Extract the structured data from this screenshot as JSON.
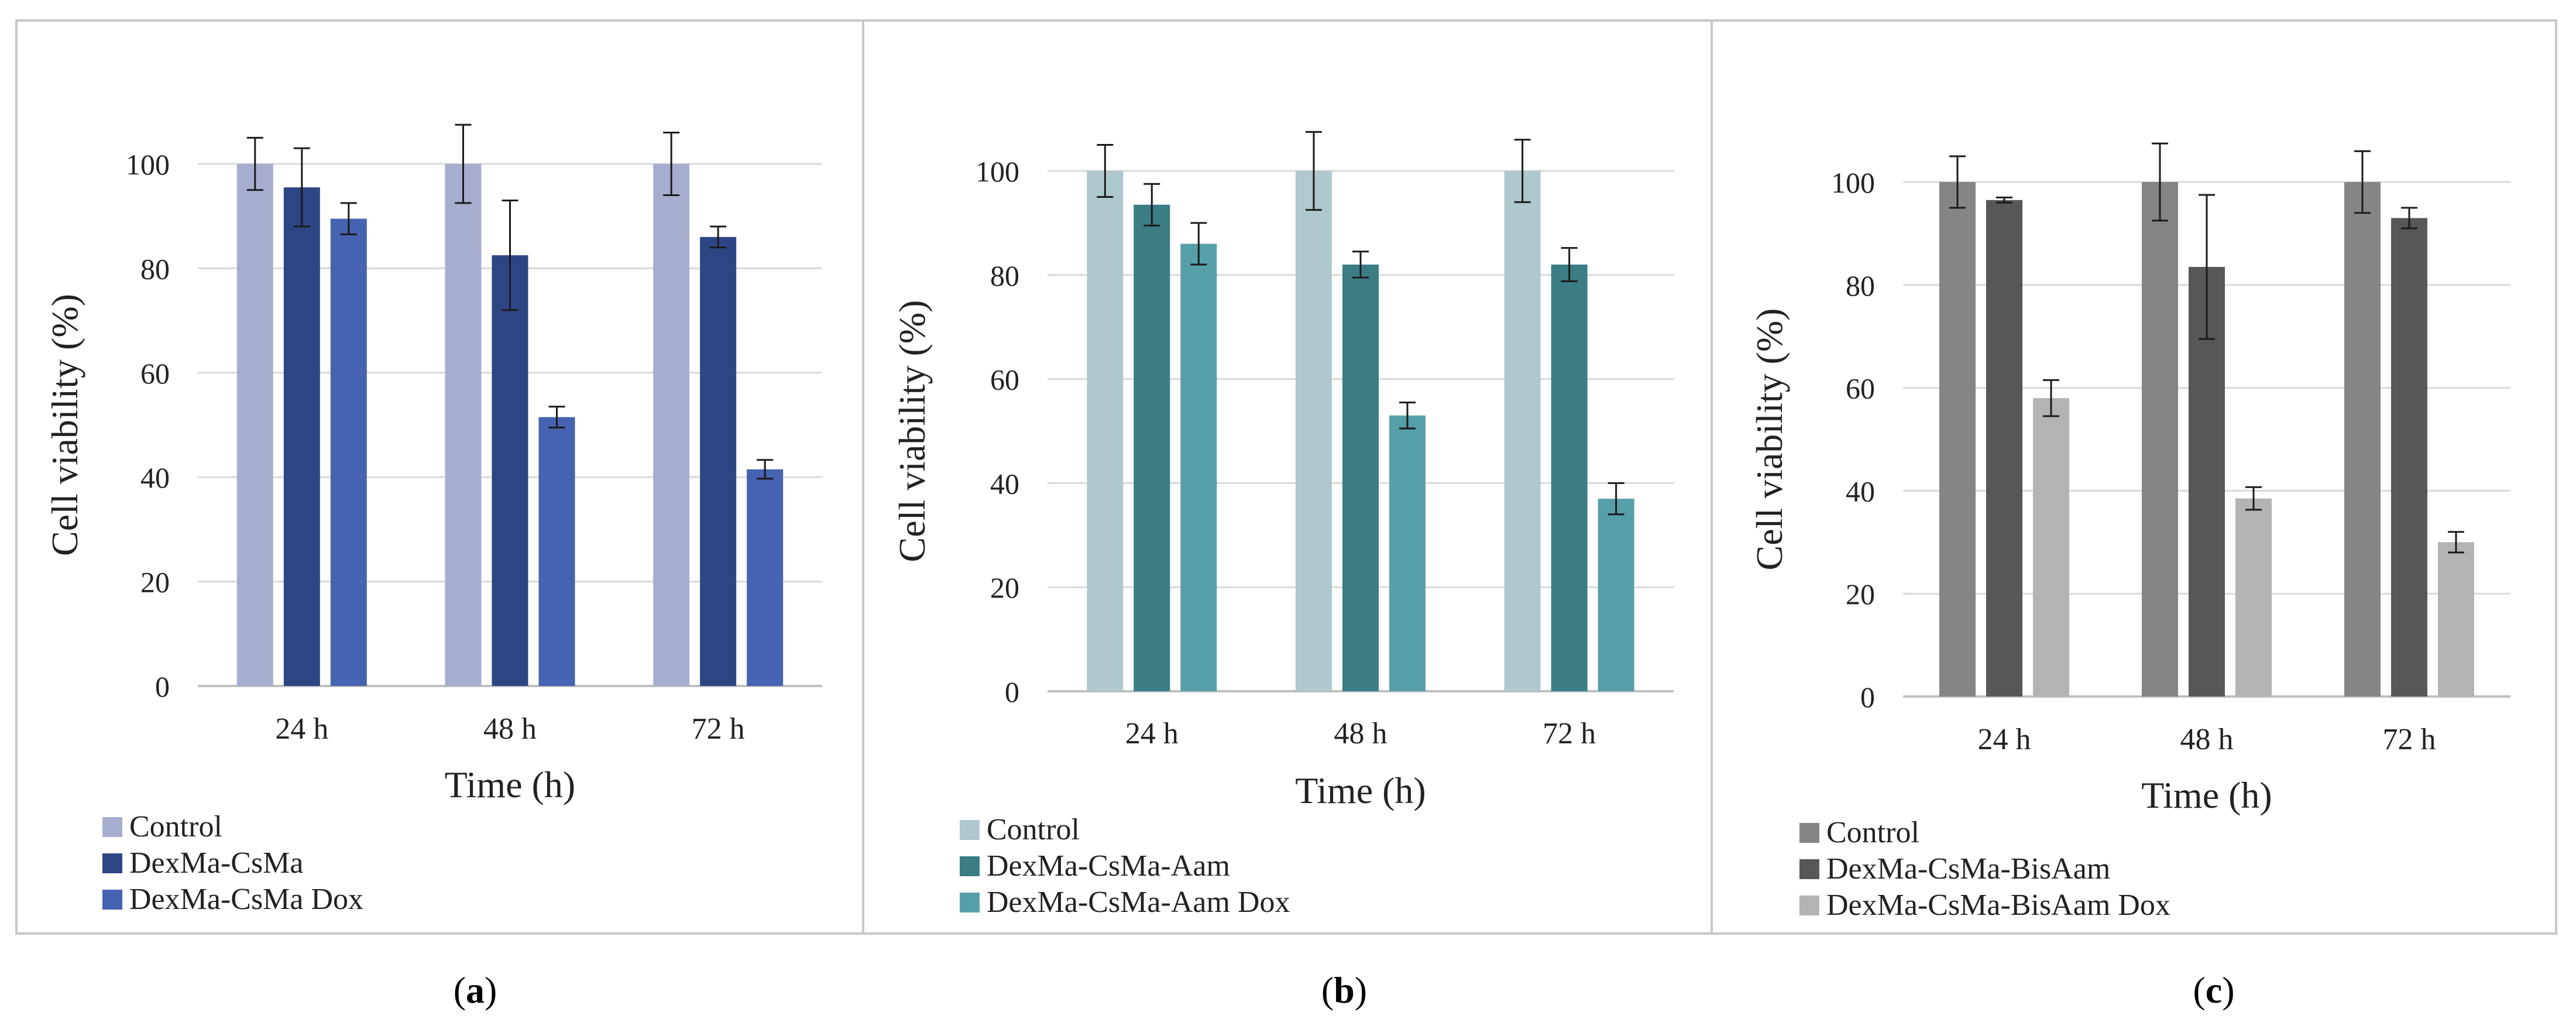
{
  "figure": {
    "captions": [
      "(a)",
      "(b)",
      "(c)"
    ],
    "caption_letters": [
      "a",
      "b",
      "c"
    ]
  },
  "chart_data": [
    {
      "type": "bar",
      "panel": "a",
      "categories": [
        "24 h",
        "48 h",
        "72 h"
      ],
      "xlabel": "Time (h)",
      "ylabel": "Cell viability (%)",
      "ylim": [
        0,
        100
      ],
      "yticks": [
        0,
        20,
        40,
        60,
        80,
        100
      ],
      "grid": true,
      "legend_position": "bottom-left",
      "series": [
        {
          "name": "Control",
          "color": "#A7ADCF",
          "values": [
            100,
            100,
            100
          ],
          "errors": [
            5,
            7.5,
            6
          ]
        },
        {
          "name": "DexMa-CsMa",
          "color": "#2E4584",
          "values": [
            95.5,
            82.5,
            86
          ],
          "errors": [
            7.5,
            10.5,
            2
          ]
        },
        {
          "name": "DexMa-CsMa Dox",
          "color": "#4563B0",
          "values": [
            89.5,
            51.5,
            41.5
          ],
          "errors": [
            3,
            2,
            1.8
          ]
        }
      ]
    },
    {
      "type": "bar",
      "panel": "b",
      "categories": [
        "24 h",
        "48 h",
        "72 h"
      ],
      "xlabel": "Time (h)",
      "ylabel": "Cell viability (%)",
      "ylim": [
        0,
        100
      ],
      "yticks": [
        0,
        20,
        40,
        60,
        80,
        100
      ],
      "grid": true,
      "legend_position": "bottom-left",
      "series": [
        {
          "name": "Control",
          "color": "#AEC8CE",
          "values": [
            100,
            100,
            100
          ],
          "errors": [
            5,
            7.5,
            6
          ]
        },
        {
          "name": "DexMa-CsMa-Aam",
          "color": "#3B7C85",
          "values": [
            93.5,
            82,
            82
          ],
          "errors": [
            4,
            2.5,
            3.2
          ]
        },
        {
          "name": "DexMa-CsMa-Aam Dox",
          "color": "#579FA9",
          "values": [
            86,
            53,
            37
          ],
          "errors": [
            4,
            2.5,
            3
          ]
        }
      ]
    },
    {
      "type": "bar",
      "panel": "c",
      "categories": [
        "24 h",
        "48 h",
        "72 h"
      ],
      "xlabel": "Time (h)",
      "ylabel": "Cell viability (%)",
      "ylim": [
        0,
        100
      ],
      "yticks": [
        0,
        20,
        40,
        60,
        80,
        100
      ],
      "grid": true,
      "legend_position": "bottom-left",
      "series": [
        {
          "name": "Control",
          "color": "#858585",
          "values": [
            100,
            100,
            100
          ],
          "errors": [
            5,
            7.5,
            6
          ]
        },
        {
          "name": "DexMa-CsMa-BisAam",
          "color": "#575757",
          "values": [
            96.5,
            83.5,
            93
          ],
          "errors": [
            0.5,
            14,
            2
          ]
        },
        {
          "name": "DexMa-CsMa-BisAam Dox",
          "color": "#B3B3B3",
          "values": [
            58,
            38.5,
            30
          ],
          "errors": [
            3.5,
            2.2,
            2
          ]
        }
      ]
    }
  ]
}
